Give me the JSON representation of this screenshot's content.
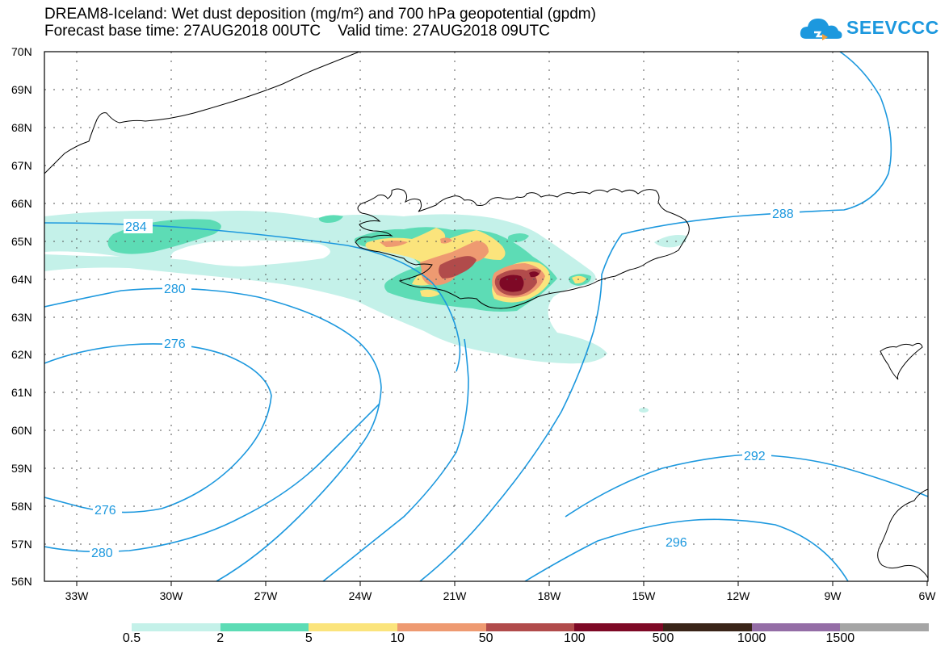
{
  "title_line1": "DREAM8-Iceland: Wet dust deposition (mg/m²) and 700 hPa geopotential (gpdm)",
  "title_line2": "Forecast base time: 27AUG2018 00UTC    Valid time: 27AUG2018 09UTC",
  "logo_text": "SEEVCCC",
  "latitudes": [
    "70N",
    "69N",
    "68N",
    "67N",
    "66N",
    "65N",
    "64N",
    "63N",
    "62N",
    "61N",
    "60N",
    "59N",
    "58N",
    "57N",
    "56N"
  ],
  "longitudes": [
    "33W",
    "30W",
    "27W",
    "24W",
    "21W",
    "18W",
    "15W",
    "12W",
    "9W",
    "6W"
  ],
  "contour_labels": [
    "284",
    "280",
    "276",
    "276",
    "280",
    "288",
    "292",
    "296"
  ],
  "legend": {
    "labels": [
      "0.5",
      "2",
      "5",
      "10",
      "50",
      "100",
      "500",
      "1000",
      "1500"
    ],
    "colors": [
      "#c4f1e9",
      "#5ddcb5",
      "#fbe47c",
      "#ee9a71",
      "#b14b4b",
      "#7e0926",
      "#392418",
      "#946da6",
      "#a5a5a5"
    ]
  },
  "colors": {
    "contour": "#1c98de",
    "land_outline": "#000000"
  }
}
